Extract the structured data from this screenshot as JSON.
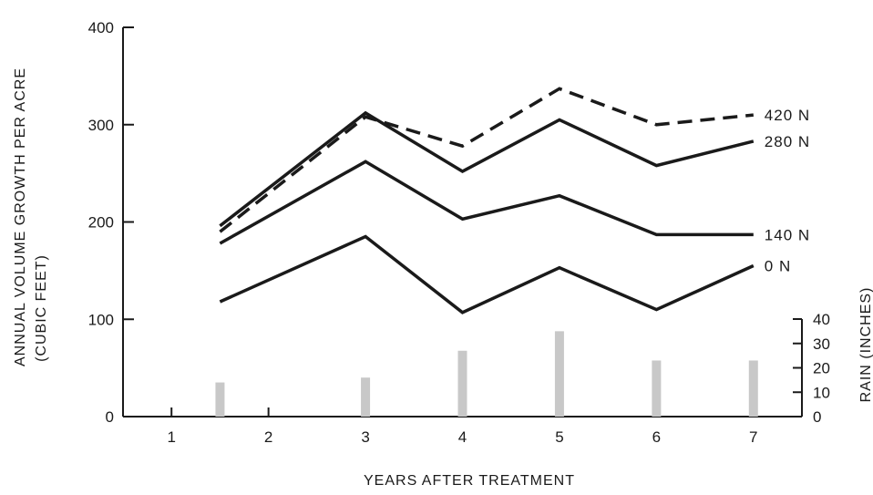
{
  "chart_data": {
    "type": "line",
    "title": "",
    "xlabel": "YEARS AFTER TREATMENT",
    "ylabel_line1": "ANNUAL VOLUME GROWTH PER ACRE",
    "ylabel_line2": "(CUBIC FEET)",
    "y2label": "RAIN (INCHES)",
    "xlim": [
      0.5,
      7.5
    ],
    "ylim": [
      0,
      400
    ],
    "y2lim": [
      0,
      40
    ],
    "x_ticks": [
      "1",
      "2",
      "3",
      "4",
      "5",
      "6",
      "7"
    ],
    "y_ticks": [
      "0",
      "100",
      "200",
      "300",
      "400"
    ],
    "y2_ticks": [
      "0",
      "10",
      "20",
      "30",
      "40"
    ],
    "grid": false,
    "series": [
      {
        "name": "420 N",
        "style": "dashed",
        "x": [
          1.5,
          3,
          4,
          5,
          6,
          7
        ],
        "y": [
          190,
          308,
          278,
          337,
          300,
          310
        ]
      },
      {
        "name": "280 N",
        "style": "solid",
        "x": [
          1.5,
          3,
          4,
          5,
          6,
          7
        ],
        "y": [
          196,
          312,
          252,
          305,
          258,
          283
        ]
      },
      {
        "name": "140 N",
        "style": "solid",
        "x": [
          1.5,
          3,
          4,
          5,
          6,
          6.5,
          7
        ],
        "y": [
          178,
          262,
          203,
          227,
          187,
          187,
          187
        ]
      },
      {
        "name": "0 N",
        "style": "solid",
        "x": [
          1.5,
          3,
          4,
          5,
          6,
          7
        ],
        "y": [
          118,
          185,
          107,
          153,
          110,
          155
        ]
      }
    ],
    "rain": {
      "x": [
        1.5,
        3,
        4,
        5,
        6,
        7
      ],
      "values": [
        14,
        16,
        27,
        35,
        23,
        23
      ]
    },
    "colors": {
      "line": "#1a1a1a",
      "rain": "#c8c8c8"
    }
  }
}
